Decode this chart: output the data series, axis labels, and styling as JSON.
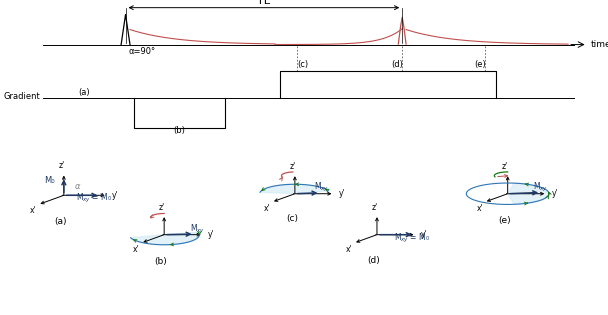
{
  "title": "TE",
  "bg_color": "#ffffff",
  "rf_color": "#c0504d",
  "gradient_color": "#000000",
  "time_label": "time",
  "gradient_label": "Gradient",
  "alpha_label": "α=90°",
  "labels_abcde": [
    "(a)",
    "(b)",
    "(c)",
    "(d)",
    "(e)"
  ],
  "axes_color": "#555555",
  "arrow_color": "#1f3864",
  "fill_color": "#cce8f4",
  "fill_alpha": 0.55,
  "green_arrow_color": "#1a7a1a",
  "dark_blue": "#1f3864"
}
